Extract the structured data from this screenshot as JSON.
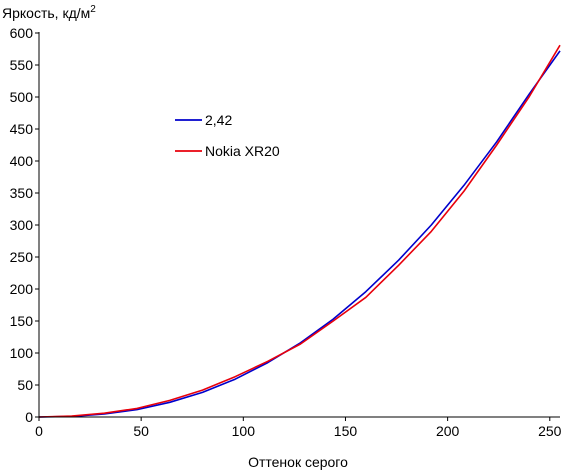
{
  "chart_data": {
    "type": "line",
    "ylabel": "Яркость, кд/м",
    "ylabel_superscript": "2",
    "xlabel": "Оттенок серого",
    "xlim": [
      0,
      255
    ],
    "ylim": [
      0,
      600
    ],
    "x_ticks": [
      0,
      50,
      100,
      150,
      200,
      250
    ],
    "y_ticks": [
      0,
      50,
      100,
      150,
      200,
      250,
      300,
      350,
      400,
      450,
      500,
      550,
      600
    ],
    "grid": false,
    "legend_position": "center-left",
    "series": [
      {
        "name": "2,42",
        "color": "#0000cc",
        "x": [
          0,
          16,
          32,
          48,
          64,
          80,
          96,
          112,
          128,
          144,
          160,
          176,
          192,
          208,
          224,
          240,
          255
        ],
        "y": [
          0,
          1.0,
          4.7,
          11.5,
          23,
          38.5,
          59,
          85,
          116,
          153,
          196,
          245,
          300,
          362,
          430,
          505,
          572
        ]
      },
      {
        "name": "Nokia XR20",
        "color": "#e8000b",
        "x": [
          0,
          16,
          32,
          48,
          64,
          80,
          96,
          112,
          128,
          144,
          160,
          176,
          192,
          208,
          224,
          240,
          255
        ],
        "y": [
          0,
          1.5,
          6.0,
          13.5,
          26,
          42,
          63,
          87,
          114,
          150,
          187,
          237,
          290,
          353,
          425,
          501,
          581
        ]
      }
    ]
  }
}
